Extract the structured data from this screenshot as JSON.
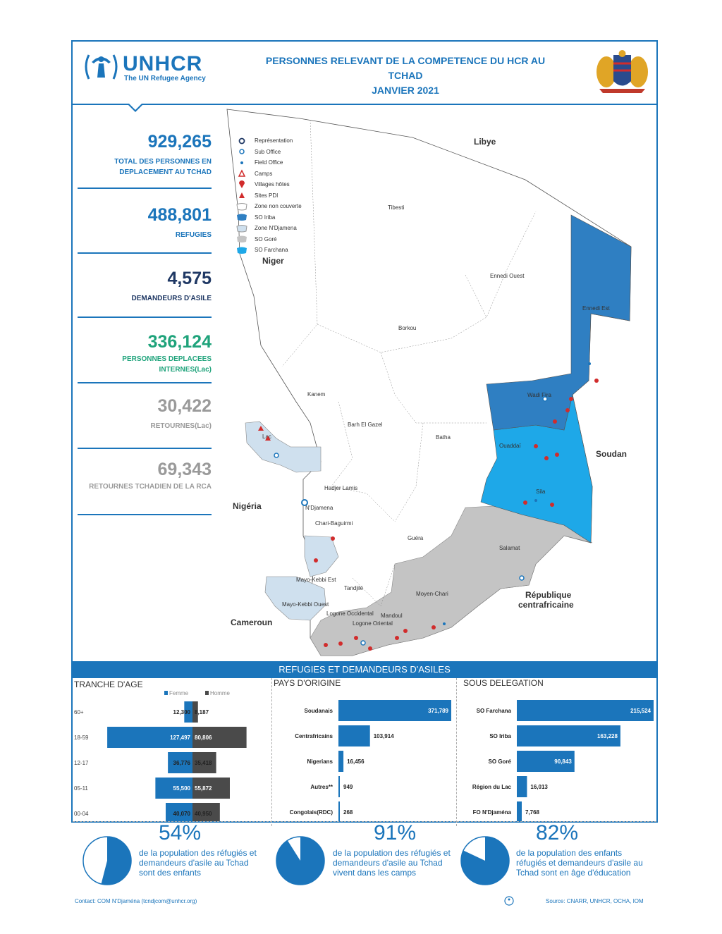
{
  "header": {
    "brand": "UNHCR",
    "tagline": "The UN Refugee Agency",
    "title_line1": "PERSONNES RELEVANT DE LA COMPETENCE DU HCR AU",
    "title_line2": "TCHAD",
    "title_line3": "JANVIER 2021"
  },
  "stats": [
    {
      "value": "929,265",
      "label": "TOTAL DES PERSONNES EN DEPLACEMENT AU TCHAD",
      "color": "#1b75bb"
    },
    {
      "value": "488,801",
      "label": "REFUGIES",
      "color": "#1b75bb"
    },
    {
      "value": "4,575",
      "label": "DEMANDEURS D'ASILE",
      "color": "#1f3864"
    },
    {
      "value": "336,124",
      "label": "PERSONNES DEPLACEES INTERNES(Lac)",
      "color": "#1fa37b"
    },
    {
      "value": "30,422",
      "label": "RETOURNES(Lac)",
      "color": "#9a9a9a"
    },
    {
      "value": "69,343",
      "label": "RETOURNES TCHADIEN DE LA RCA",
      "color": "#9a9a9a"
    }
  ],
  "legend": [
    {
      "label": "Représentation",
      "icon": "representation-icon"
    },
    {
      "label": "Sub Office",
      "icon": "sub-office-icon"
    },
    {
      "label": "Field Office",
      "icon": "field-office-icon"
    },
    {
      "label": "Camps",
      "icon": "camp-icon"
    },
    {
      "label": "Villages hôtes",
      "icon": "host-village-icon"
    },
    {
      "label": "Sites PDI",
      "icon": "idp-site-icon"
    },
    {
      "label": "Zone non couverte",
      "icon": "zone-uncovered-swatch"
    },
    {
      "label": "SO Iriba",
      "icon": "so-iriba-swatch"
    },
    {
      "label": "Zone N'Djamena",
      "icon": "zone-ndjamena-swatch"
    },
    {
      "label": "SO Goré",
      "icon": "so-gore-swatch"
    },
    {
      "label": "SO Farchana",
      "icon": "so-farchana-swatch"
    }
  ],
  "map": {
    "countries": [
      "Libye",
      "Niger",
      "Soudan",
      "Nigéria",
      "Cameroun",
      "République centrafricaine"
    ],
    "regions": [
      "Borkou",
      "Ennedi Ouest",
      "Ennedi Est",
      "Kanem",
      "Batha",
      "Barh El Gazel",
      "Wadi Fira",
      "Ouaddaï",
      "Sila",
      "Hadjer Lamis",
      "N'Djamena",
      "Chari-Baguirmi",
      "Guéra",
      "Salamat",
      "Mayo-Kebbi Est",
      "Mayo-Kebbi Ouest",
      "Tandjilé",
      "Logone Occidental",
      "Logone Oriental",
      "Mandoul",
      "Moyen-Chari",
      "Lac",
      "Tibesti"
    ],
    "colors": {
      "so_iriba": "#2f7fc2",
      "so_farchana": "#1ea8e8",
      "so_gore": "#c4c4c4",
      "zone_ndjamena": "#cfe0ee",
      "uncovered": "#ffffff"
    }
  },
  "section_band": "REFUGIES ET DEMANDEURS D'ASILES",
  "age": {
    "title": "TRANCHE D'AGE",
    "legend_f": "Femme",
    "legend_h": "Homme",
    "rows": [
      {
        "group": "60+",
        "f": 12300,
        "h": 8187,
        "f_label": "12,300",
        "h_label": "8,187"
      },
      {
        "group": "18-59",
        "f": 127497,
        "h": 80806,
        "f_label": "127,497",
        "h_label": "80,806"
      },
      {
        "group": "12-17",
        "f": 36776,
        "h": 35418,
        "f_label": "36,776",
        "h_label": "35,418"
      },
      {
        "group": "05-11",
        "f": 55500,
        "h": 55872,
        "f_label": "55,500",
        "h_label": "55,872"
      },
      {
        "group": "00-04",
        "f": 40070,
        "h": 40950,
        "f_label": "40,070",
        "h_label": "40,950"
      }
    ]
  },
  "origin": {
    "title": "PAYS D'ORIGINE",
    "rows": [
      {
        "name": "Soudanais",
        "value": 371789,
        "label": "371,789"
      },
      {
        "name": "Centrafricains",
        "value": 103914,
        "label": "103,914"
      },
      {
        "name": "Nigerians",
        "value": 16456,
        "label": "16,456"
      },
      {
        "name": "Autres**",
        "value": 949,
        "label": "949"
      },
      {
        "name": "Congolais(RDC)",
        "value": 268,
        "label": "268"
      }
    ]
  },
  "delegation": {
    "title": "SOUS DELEGATION",
    "rows": [
      {
        "name": "SO Farchana",
        "value": 215524,
        "label": "215,524"
      },
      {
        "name": "SO Iriba",
        "value": 163228,
        "label": "163,228"
      },
      {
        "name": "SO Goré",
        "value": 90843,
        "label": "90,843"
      },
      {
        "name": "Région du Lac",
        "value": 16013,
        "label": "16,013"
      },
      {
        "name": "FO N'Djaména",
        "value": 7768,
        "label": "7,768"
      }
    ]
  },
  "chart_data": [
    {
      "type": "bar",
      "title": "TRANCHE D'AGE",
      "categories": [
        "60+",
        "18-59",
        "12-17",
        "05-11",
        "00-04"
      ],
      "series": [
        {
          "name": "Femme",
          "values": [
            12300,
            127497,
            36776,
            55500,
            40070
          ]
        },
        {
          "name": "Homme",
          "values": [
            8187,
            80806,
            35418,
            55872,
            40950
          ]
        }
      ]
    },
    {
      "type": "bar",
      "title": "PAYS D'ORIGINE",
      "categories": [
        "Soudanais",
        "Centrafricains",
        "Nigerians",
        "Autres**",
        "Congolais(RDC)"
      ],
      "values": [
        371789,
        103914,
        16456,
        949,
        268
      ]
    },
    {
      "type": "bar",
      "title": "SOUS DELEGATION",
      "categories": [
        "SO Farchana",
        "SO Iriba",
        "SO Goré",
        "Région du Lac",
        "FO N'Djaména"
      ],
      "values": [
        215524,
        163228,
        90843,
        16013,
        7768
      ]
    },
    {
      "type": "pie",
      "values": [
        54,
        46
      ]
    },
    {
      "type": "pie",
      "values": [
        91,
        9
      ]
    },
    {
      "type": "pie",
      "values": [
        82,
        18
      ]
    }
  ],
  "kpis": [
    {
      "pct": "54%",
      "fraction": 0.54,
      "text": "de la population des réfugiés et demandeurs d'asile au Tchad sont des enfants"
    },
    {
      "pct": "91%",
      "fraction": 0.91,
      "text": "de la population des réfugiés et demandeurs d'asile au Tchad vivent dans les camps"
    },
    {
      "pct": "82%",
      "fraction": 0.82,
      "text": "de la population des enfants réfugiés et demandeurs d'asile au Tchad sont en âge d'éducation"
    }
  ],
  "footer": {
    "contact": "Contact: COM N'Djaména (tcndjcom@unhcr.org)",
    "source": "Source: CNARR, UNHCR, OCHA, IOM"
  }
}
